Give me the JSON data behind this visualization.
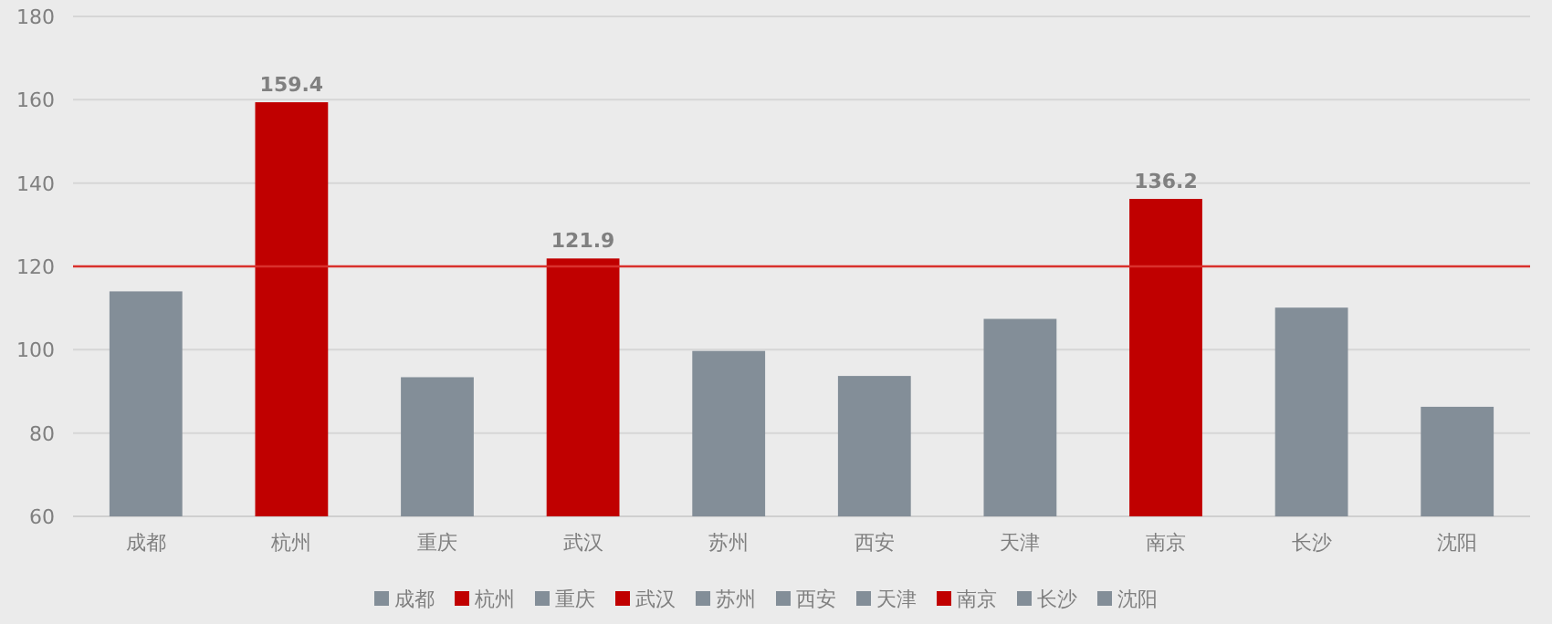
{
  "chart_data": {
    "type": "bar",
    "categories": [
      "成都",
      "杭州",
      "重庆",
      "武汉",
      "苏州",
      "西安",
      "天津",
      "南京",
      "长沙",
      "沈阳"
    ],
    "series": [
      {
        "name": "成都",
        "color": "#838e98",
        "values": [
          114.0,
          null,
          null,
          null,
          null,
          null,
          null,
          null,
          null,
          null
        ]
      },
      {
        "name": "杭州",
        "color": "#c00000",
        "values": [
          null,
          159.4,
          null,
          null,
          null,
          null,
          null,
          null,
          null,
          null
        ],
        "value_labels": [
          null,
          "159.4",
          null,
          null,
          null,
          null,
          null,
          null,
          null,
          null
        ]
      },
      {
        "name": "重庆",
        "color": "#838e98",
        "values": [
          null,
          null,
          93.4,
          null,
          null,
          null,
          null,
          null,
          null,
          null
        ]
      },
      {
        "name": "武汉",
        "color": "#c00000",
        "values": [
          null,
          null,
          null,
          121.9,
          null,
          null,
          null,
          null,
          null,
          null
        ],
        "value_labels": [
          null,
          null,
          null,
          "121.9",
          null,
          null,
          null,
          null,
          null,
          null
        ]
      },
      {
        "name": "苏州",
        "color": "#838e98",
        "values": [
          null,
          null,
          null,
          null,
          99.7,
          null,
          null,
          null,
          null,
          null
        ]
      },
      {
        "name": "西安",
        "color": "#838e98",
        "values": [
          null,
          null,
          null,
          null,
          null,
          93.7,
          null,
          null,
          null,
          null
        ]
      },
      {
        "name": "天津",
        "color": "#838e98",
        "values": [
          null,
          null,
          null,
          null,
          null,
          null,
          107.4,
          null,
          null,
          null
        ]
      },
      {
        "name": "南京",
        "color": "#c00000",
        "values": [
          null,
          null,
          null,
          null,
          null,
          null,
          null,
          136.2,
          null,
          null
        ],
        "value_labels": [
          null,
          null,
          null,
          null,
          null,
          null,
          null,
          "136.2",
          null,
          null
        ]
      },
      {
        "name": "长沙",
        "color": "#838e98",
        "values": [
          null,
          null,
          null,
          null,
          null,
          null,
          null,
          null,
          110.1,
          null
        ]
      },
      {
        "name": "沈阳",
        "color": "#838e98",
        "values": [
          null,
          null,
          null,
          null,
          null,
          null,
          null,
          null,
          null,
          86.3
        ]
      }
    ],
    "ylim": [
      60,
      180
    ],
    "yticks": [
      60,
      80,
      100,
      120,
      140,
      160,
      180
    ],
    "ref_lines": [
      {
        "axis": "y",
        "value": 120,
        "color": "#d9302c"
      }
    ],
    "grid": "y",
    "legend": "bottom"
  }
}
